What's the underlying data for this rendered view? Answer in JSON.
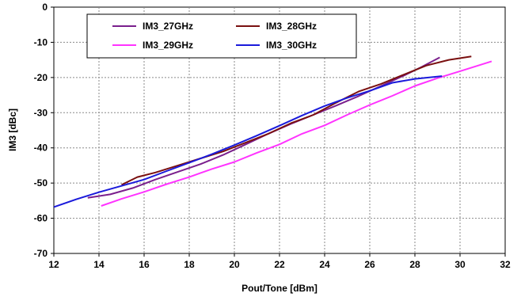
{
  "chart_data": {
    "type": "line",
    "title": "",
    "xlabel": "Pout/Tone [dBm]",
    "ylabel": "IM3 [dBc]",
    "xlim": [
      12,
      32
    ],
    "ylim": [
      -70,
      0
    ],
    "xticks": [
      12,
      14,
      16,
      18,
      20,
      22,
      24,
      26,
      28,
      30,
      32
    ],
    "yticks": [
      0,
      -10,
      -20,
      -30,
      -40,
      -50,
      -60,
      -70
    ],
    "grid": true,
    "legend_position": "top-left",
    "series": [
      {
        "name": "IM3_27GHz",
        "color": "#7a1f8c",
        "x": [
          13.5,
          14.5,
          15.5,
          16.5,
          17.5,
          18.5,
          19.5,
          20.5,
          21.5,
          22.5,
          23.5,
          24.5,
          25.5,
          26.5,
          27.5,
          28.3,
          29.1
        ],
        "y": [
          -54.2,
          -53.2,
          -51.4,
          -49,
          -46.8,
          -44.6,
          -42,
          -39,
          -36,
          -33.2,
          -30.6,
          -28,
          -25.3,
          -22.4,
          -19.5,
          -17,
          -14.3
        ]
      },
      {
        "name": "IM3_28GHz",
        "color": "#7a1010",
        "x": [
          15,
          15.7,
          16.5,
          17.5,
          18.5,
          19.5,
          20.5,
          21.5,
          22.5,
          23.5,
          24.5,
          25.5,
          26.5,
          27.5,
          28.5,
          29.5,
          30.5
        ],
        "y": [
          -50.5,
          -48.3,
          -47,
          -45,
          -43,
          -41,
          -38.5,
          -36,
          -33,
          -30.6,
          -27.2,
          -24,
          -21.8,
          -19.2,
          -16.6,
          -15,
          -14
        ]
      },
      {
        "name": "IM3_29GHz",
        "color": "#ff33ff",
        "x": [
          14.1,
          15,
          16,
          17,
          18,
          19,
          20,
          21,
          22,
          23,
          24,
          25,
          26,
          27,
          28,
          29,
          30,
          31.4
        ],
        "y": [
          -56.5,
          -54.5,
          -52.5,
          -50.3,
          -48.3,
          -46,
          -44,
          -41.4,
          -39,
          -36,
          -33.6,
          -30.6,
          -27.8,
          -25.2,
          -22.4,
          -20.2,
          -18.2,
          -15.4
        ]
      },
      {
        "name": "IM3_30GHz",
        "color": "#1a1adb",
        "x": [
          12,
          13,
          14,
          15,
          16,
          17,
          18,
          19,
          20,
          21,
          22,
          23,
          24,
          25,
          26,
          27,
          28,
          29.2
        ],
        "y": [
          -56.8,
          -54.6,
          -52.6,
          -50.8,
          -49,
          -46.6,
          -44.2,
          -41.8,
          -39.2,
          -36.5,
          -33.7,
          -30.8,
          -28.1,
          -25.8,
          -23.8,
          -21.5,
          -20.4,
          -19.6
        ]
      }
    ]
  }
}
